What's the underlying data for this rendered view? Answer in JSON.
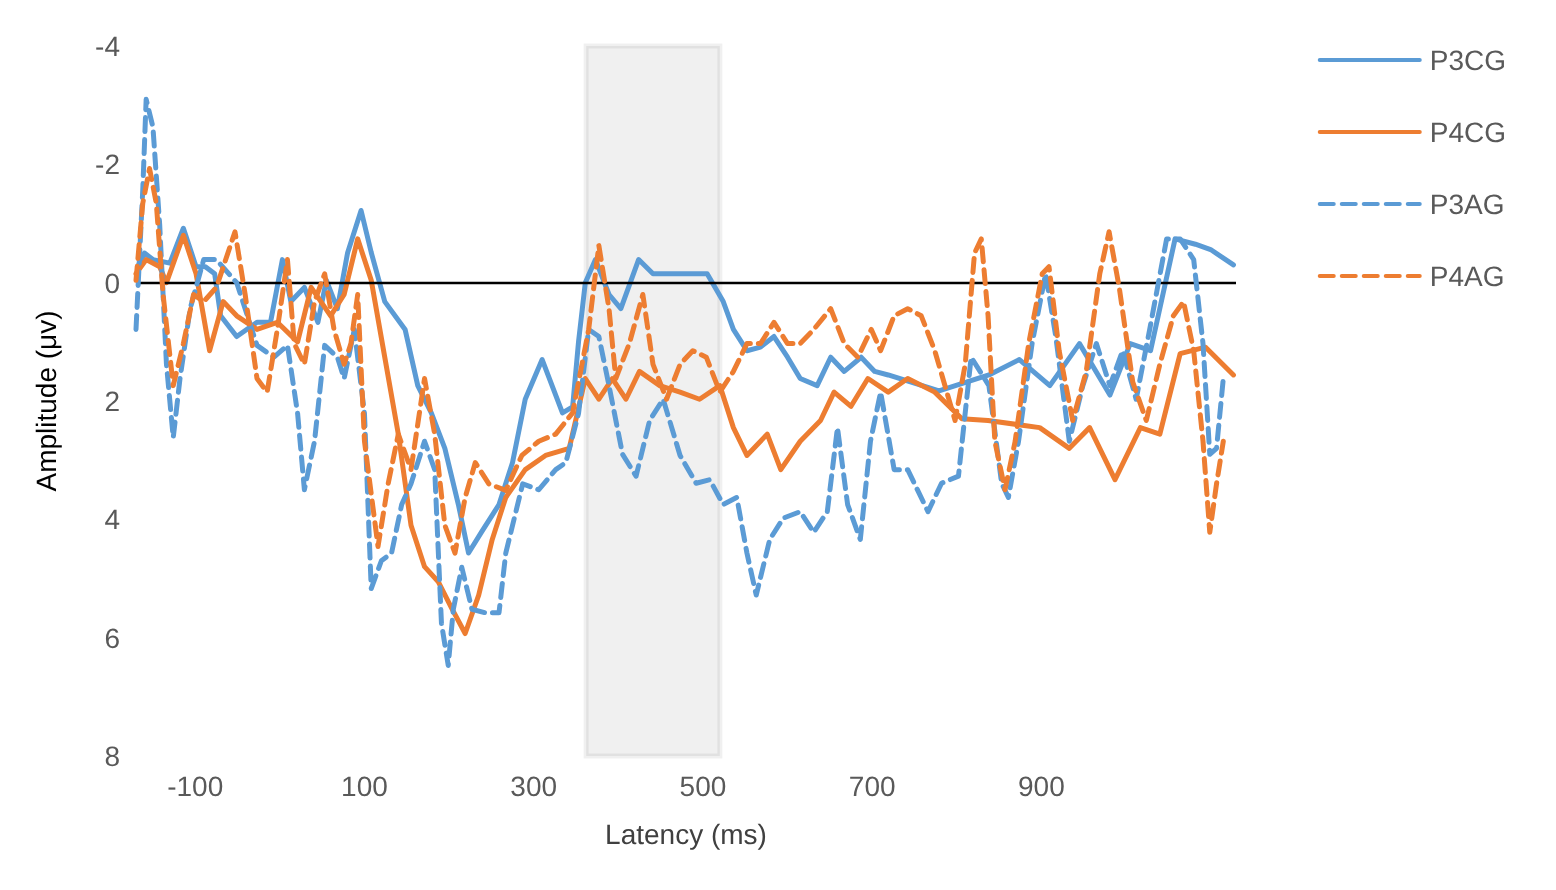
{
  "chart_data": {
    "type": "line",
    "xlabel": "Latency (ms)",
    "ylabel": "Amplitude (μv)",
    "xlim": [
      -170,
      1130
    ],
    "xticks": [
      -100,
      100,
      300,
      500,
      700,
      900
    ],
    "ylim": [
      8,
      -4
    ],
    "yticks": [
      -4,
      -2,
      0,
      2,
      4,
      6,
      8
    ],
    "grid": false,
    "legend": "top right",
    "marker": "none",
    "ref_lines": [
      {
        "axis": "y",
        "value": 0,
        "color": "#000000"
      }
    ],
    "bands": [
      {
        "axis": "x",
        "from": 362,
        "to": 520,
        "color": "#000000"
      }
    ],
    "series": [
      {
        "name": "P3CG",
        "color": "#5b9bd5",
        "line_style": "solid",
        "x": [
          -168,
          -160,
          -150,
          -130,
          -114,
          -99,
          -88,
          -77,
          -70,
          -51,
          -27,
          -11,
          3,
          13,
          29,
          45,
          55,
          68,
          80,
          96,
          108,
          124,
          148,
          163,
          179,
          195,
          211,
          223,
          239,
          259,
          275,
          290,
          310,
          318,
          334,
          346,
          353,
          361,
          373,
          389,
          403,
          424,
          441,
          457,
          473,
          489,
          505,
          524,
          536,
          552,
          568,
          584,
          600,
          615,
          635,
          651,
          667,
          687,
          703,
          719,
          779,
          838,
          874,
          910,
          945,
          981,
          1005,
          1029,
          1058,
          1082,
          1100,
          1127
        ],
        "values": [
          -0.27,
          -0.5,
          -0.39,
          -0.33,
          -0.92,
          -0.27,
          -0.27,
          -0.15,
          0.56,
          0.91,
          0.67,
          0.67,
          -0.39,
          0.32,
          0.08,
          0.67,
          -0.04,
          0.44,
          -0.5,
          -1.22,
          -0.51,
          0.32,
          0.79,
          1.74,
          2.2,
          2.8,
          3.75,
          4.57,
          4.2,
          3.75,
          3.04,
          1.97,
          1.3,
          1.6,
          2.2,
          2.1,
          1.0,
          0,
          -0.39,
          0.2,
          0.44,
          -0.39,
          -0.15,
          -0.15,
          -0.15,
          -0.15,
          -0.15,
          0.32,
          0.79,
          1.15,
          1.09,
          0.91,
          1.26,
          1.62,
          1.74,
          1.26,
          1.5,
          1.26,
          1.5,
          1.56,
          1.83,
          1.56,
          1.3,
          1.74,
          1.03,
          1.9,
          1.03,
          1.15,
          -0.74,
          -0.65,
          -0.56,
          -0.3
        ]
      },
      {
        "name": "P4CG",
        "color": "#ed7d31",
        "line_style": "solid",
        "x": [
          -170,
          -158,
          -142,
          -134,
          -114,
          -99,
          -83,
          -67,
          -51,
          -27,
          -3,
          21,
          37,
          60,
          76,
          92,
          108,
          124,
          140,
          155,
          171,
          187,
          203,
          219,
          235,
          251,
          267,
          290,
          314,
          342,
          361,
          377,
          393,
          409,
          425,
          449,
          473,
          496,
          520,
          536,
          552,
          576,
          592,
          615,
          639,
          655,
          675,
          695,
          719,
          742,
          774,
          806,
          837,
          898,
          933,
          957,
          987,
          1017,
          1040,
          1064,
          1094,
          1127
        ],
        "values": [
          -0.15,
          -0.39,
          -0.27,
          0,
          -0.8,
          -0.15,
          1.15,
          0.32,
          0.56,
          0.79,
          0.67,
          1.0,
          0.08,
          0.56,
          0.2,
          -0.74,
          -0.04,
          1.26,
          2.56,
          4.1,
          4.8,
          5.05,
          5.5,
          5.93,
          5.28,
          4.34,
          3.63,
          3.16,
          2.92,
          2.8,
          1.62,
          1.97,
          1.62,
          1.97,
          1.5,
          1.74,
          1.85,
          1.97,
          1.74,
          2.45,
          2.92,
          2.56,
          3.16,
          2.68,
          2.33,
          1.85,
          2.09,
          1.62,
          1.85,
          1.62,
          1.85,
          2.3,
          2.33,
          2.45,
          2.8,
          2.45,
          3.33,
          2.45,
          2.56,
          1.2,
          1.09,
          1.56
        ]
      },
      {
        "name": "P3AG",
        "color": "#5b9bd5",
        "line_style": "dashed",
        "x": [
          -170,
          -162,
          -158,
          -150,
          -142,
          -134,
          -126,
          -118,
          -106,
          -90,
          -75,
          -51,
          -27,
          -7,
          9,
          21,
          29,
          41,
          53,
          68,
          76,
          88,
          100,
          108,
          120,
          132,
          144,
          155,
          171,
          183,
          191,
          199,
          205,
          215,
          227,
          243,
          259,
          267,
          287,
          306,
          326,
          338,
          353,
          365,
          377,
          389,
          405,
          421,
          437,
          453,
          473,
          492,
          508,
          524,
          540,
          552,
          563,
          579,
          595,
          615,
          631,
          647,
          659,
          671,
          686,
          698,
          710,
          726,
          742,
          766,
          782,
          802,
          817,
          838,
          853,
          861,
          873,
          889,
          905,
          917,
          933,
          949,
          965,
          981,
          996,
          1012,
          1028,
          1048,
          1064,
          1080,
          1091,
          1099,
          1107,
          1115
        ],
        "values": [
          0.79,
          -1.57,
          -3.1,
          -2.63,
          -0.98,
          1.38,
          2.62,
          1.62,
          0.44,
          -0.39,
          -0.39,
          0,
          1.06,
          1.26,
          1.06,
          2.21,
          3.5,
          2.68,
          1.06,
          1.26,
          1.62,
          0.79,
          2.21,
          5.17,
          4.7,
          4.57,
          3.75,
          3.4,
          2.68,
          3.16,
          5.76,
          6.47,
          5.52,
          4.81,
          5.52,
          5.58,
          5.58,
          4.57,
          3.4,
          3.5,
          3.16,
          3.04,
          2.21,
          0.79,
          0.91,
          1.74,
          2.9,
          3.27,
          2.33,
          1.97,
          2.92,
          3.39,
          3.33,
          3.75,
          3.63,
          4.57,
          5.28,
          4.34,
          3.98,
          3.87,
          4.22,
          3.87,
          2.45,
          3.75,
          4.34,
          2.68,
          1.85,
          3.16,
          3.16,
          3.87,
          3.39,
          3.27,
          1.26,
          1.74,
          3.39,
          3.63,
          2.68,
          1.03,
          -0.15,
          0.91,
          2.68,
          1.74,
          1.03,
          1.74,
          1.15,
          1.97,
          0.79,
          -0.74,
          -0.74,
          -0.39,
          1.03,
          2.9,
          2.8,
          1.62
        ]
      },
      {
        "name": "P4AG",
        "color": "#ed7d31",
        "line_style": "dashed",
        "x": [
          -170,
          -162,
          -154,
          -146,
          -138,
          -126,
          -114,
          -102,
          -90,
          -75,
          -53,
          -41,
          -27,
          -15,
          -3,
          9,
          17,
          29,
          41,
          53,
          64,
          76,
          84,
          92,
          100,
          116,
          128,
          140,
          155,
          171,
          183,
          195,
          207,
          219,
          231,
          247,
          267,
          286,
          306,
          326,
          346,
          365,
          377,
          389,
          397,
          413,
          429,
          441,
          457,
          473,
          488,
          504,
          520,
          536,
          552,
          568,
          584,
          600,
          615,
          631,
          651,
          667,
          683,
          699,
          710,
          726,
          742,
          758,
          774,
          798,
          810,
          821,
          829,
          837,
          845,
          857,
          869,
          885,
          901,
          909,
          921,
          937,
          953,
          969,
          980,
          992,
          1008,
          1024,
          1040,
          1056,
          1068,
          1080,
          1091,
          1099,
          1107,
          1115
        ],
        "values": [
          -0.04,
          -1.34,
          -1.93,
          -1.34,
          0.2,
          1.74,
          1.03,
          0.2,
          0.32,
          0.08,
          -0.86,
          0.2,
          1.62,
          1.85,
          0.79,
          -0.39,
          1.03,
          1.38,
          0.32,
          -0.15,
          0.79,
          1.38,
          1.03,
          0.2,
          2.68,
          4.46,
          3.4,
          2.56,
          3.16,
          1.62,
          2.56,
          4.1,
          4.57,
          3.63,
          3.04,
          3.4,
          3.51,
          2.92,
          2.68,
          2.56,
          2.2,
          0.79,
          -0.63,
          0.44,
          1.62,
          1.03,
          0.2,
          1.38,
          1.97,
          1.38,
          1.15,
          1.26,
          1.85,
          1.5,
          1.03,
          1.03,
          0.67,
          1.03,
          1.03,
          0.79,
          0.44,
          1.03,
          1.26,
          0.79,
          1.15,
          0.56,
          0.44,
          0.56,
          1.15,
          2.33,
          1.38,
          -0.5,
          -0.74,
          0.56,
          2.68,
          3.5,
          2.68,
          1.03,
          -0.15,
          -0.27,
          1.15,
          2.33,
          1.5,
          -0.15,
          -0.86,
          0.08,
          1.68,
          2.33,
          1.38,
          0.56,
          0.32,
          1.15,
          2.68,
          4.22,
          3.4,
          2.68
        ]
      }
    ]
  }
}
